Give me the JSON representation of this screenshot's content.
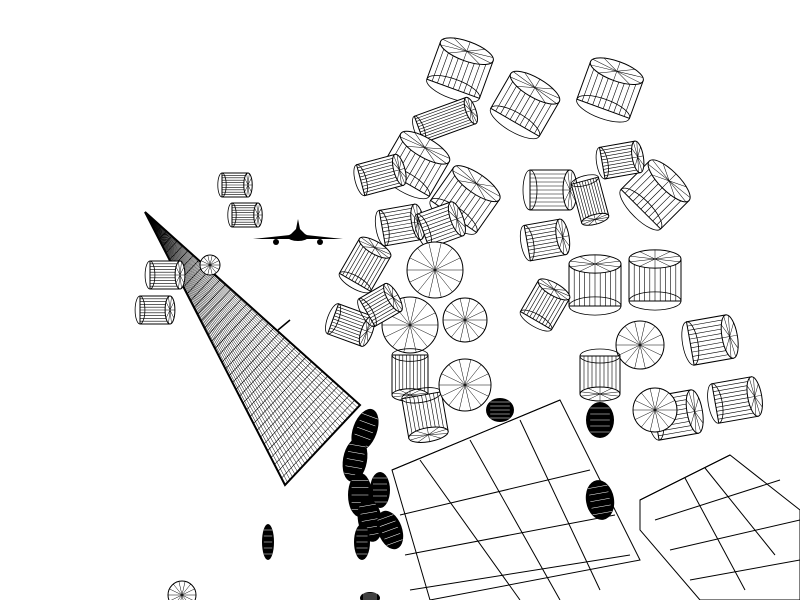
{
  "scene": {
    "style": "black wireframe render on white background",
    "colors": {
      "background": "#ffffff",
      "line": "#000000"
    },
    "objects": [
      "landing-gear-wheel-clusters",
      "wireframe-wing-surface",
      "distant-aircraft-silhouette",
      "ground-grid-planes",
      "scattered-tires"
    ]
  }
}
